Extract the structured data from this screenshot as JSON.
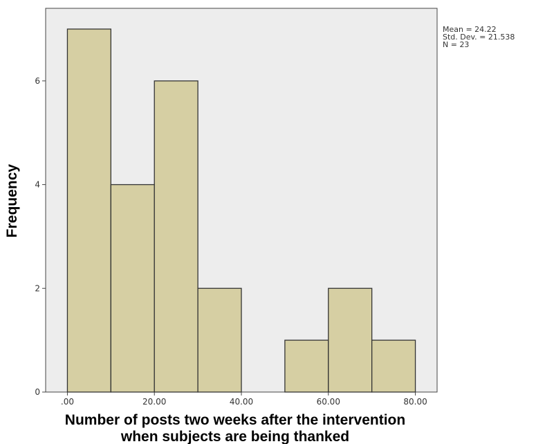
{
  "chart_data": {
    "type": "bar",
    "subtype": "histogram",
    "title": "",
    "xlabel_lines": [
      "Number of posts two weeks after the intervention",
      "when subjects are being thanked"
    ],
    "ylabel": "Frequency",
    "bins": [
      {
        "start": 0,
        "end": 10,
        "count": 7
      },
      {
        "start": 10,
        "end": 20,
        "count": 4
      },
      {
        "start": 20,
        "end": 30,
        "count": 6
      },
      {
        "start": 30,
        "end": 40,
        "count": 2
      },
      {
        "start": 40,
        "end": 50,
        "count": 0
      },
      {
        "start": 50,
        "end": 60,
        "count": 1
      },
      {
        "start": 60,
        "end": 70,
        "count": 2
      },
      {
        "start": 70,
        "end": 80,
        "count": 1
      }
    ],
    "xlim": [
      -5,
      85
    ],
    "ylim": [
      0,
      7.4
    ],
    "xticks": [
      0,
      20,
      40,
      60,
      80
    ],
    "xtick_labels": [
      ".00",
      "20.00",
      "40.00",
      "60.00",
      "80.00"
    ],
    "yticks": [
      0,
      2,
      4,
      6
    ],
    "ytick_labels": [
      "0",
      "2",
      "4",
      "6"
    ],
    "stats": [
      "Mean = 24.22",
      "Std. Dev. = 21.538",
      "N = 23"
    ],
    "grid": false,
    "colors": {
      "bar_fill": "#d6cfa3",
      "bar_stroke": "#333333",
      "plot_background": "#ededed",
      "frame": "#444444"
    }
  }
}
